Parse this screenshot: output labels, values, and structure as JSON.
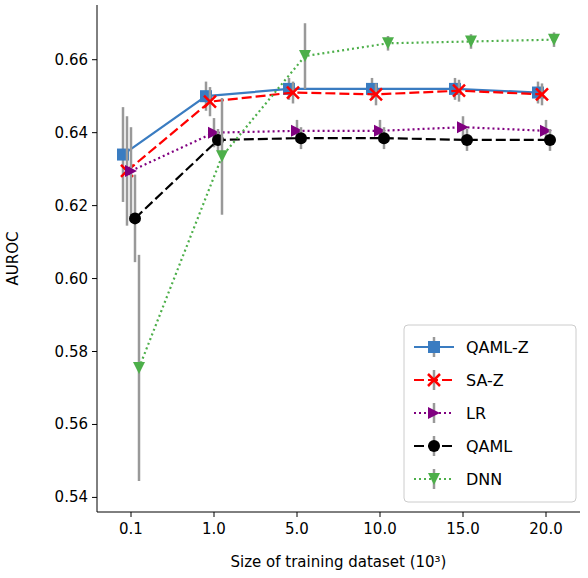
{
  "chart_data": {
    "type": "line",
    "x_label": "Size of training dataset (10³)",
    "y_label": "AUROC",
    "categories": [
      "0.1",
      "1.0",
      "5.0",
      "10.0",
      "15.0",
      "20.0"
    ],
    "ylim": [
      0.536,
      0.675
    ],
    "yticks": [
      0.54,
      0.56,
      0.58,
      {
        "value": 0.6,
        "label": "0.60"
      },
      0.62,
      0.64,
      0.66
    ],
    "grid": false,
    "legend": "lower right",
    "series": [
      {
        "name": "QAML-Z",
        "color": "#3a7cc1",
        "marker": "square",
        "line_style": "solid",
        "values": [
          0.634,
          0.65,
          0.652,
          0.652,
          0.652,
          0.651
        ],
        "errors": [
          0.013,
          0.004,
          0.003,
          0.003,
          0.003,
          0.003
        ]
      },
      {
        "name": "SA-Z",
        "color": "#ff0000",
        "marker": "x",
        "line_style": "dashed",
        "values": [
          0.6295,
          0.6485,
          0.651,
          0.6505,
          0.6515,
          0.6505
        ],
        "errors": [
          0.015,
          0.004,
          0.003,
          0.003,
          0.003,
          0.003
        ]
      },
      {
        "name": "LR",
        "color": "#800080",
        "marker": "triangle-right",
        "line_style": "dotted",
        "values": [
          0.6295,
          0.64,
          0.6405,
          0.6405,
          0.6415,
          0.6405
        ],
        "errors": [
          0.012,
          0.004,
          0.003,
          0.003,
          0.003,
          0.003
        ]
      },
      {
        "name": "QAML",
        "color": "#000000",
        "marker": "circle",
        "line_style": "dashed",
        "values": [
          0.6165,
          0.638,
          0.6385,
          0.6385,
          0.638,
          0.638
        ],
        "errors": [
          0.012,
          0.003,
          0.003,
          0.003,
          0.003,
          0.003
        ]
      },
      {
        "name": "DNN",
        "color": "#4daf4a",
        "marker": "triangle-down",
        "line_style": "dotted",
        "values": [
          0.5755,
          0.6335,
          0.661,
          0.6645,
          0.665,
          0.6655
        ],
        "errors": [
          0.031,
          0.016,
          0.009,
          0.002,
          0.002,
          0.002
        ]
      }
    ]
  }
}
